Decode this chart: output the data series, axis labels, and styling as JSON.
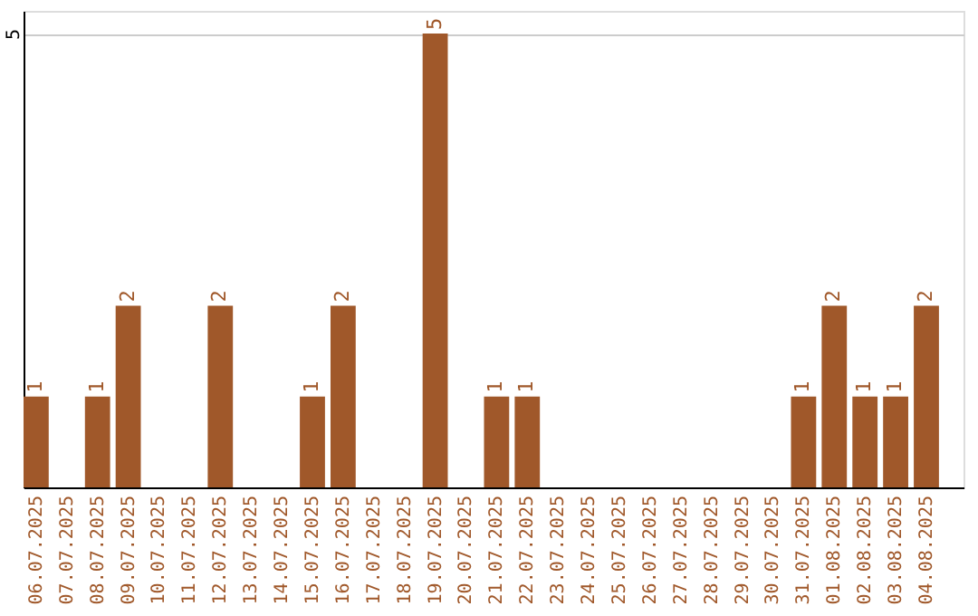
{
  "chart_data": {
    "type": "bar",
    "categories": [
      "06.07.2025",
      "07.07.2025",
      "08.07.2025",
      "09.07.2025",
      "10.07.2025",
      "11.07.2025",
      "12.07.2025",
      "13.07.2025",
      "14.07.2025",
      "15.07.2025",
      "16.07.2025",
      "17.07.2025",
      "18.07.2025",
      "19.07.2025",
      "20.07.2025",
      "21.07.2025",
      "22.07.2025",
      "23.07.2025",
      "24.07.2025",
      "25.07.2025",
      "26.07.2025",
      "27.07.2025",
      "28.07.2025",
      "29.07.2025",
      "30.07.2025",
      "31.07.2025",
      "01.08.2025",
      "02.08.2025",
      "03.08.2025",
      "04.08.2025"
    ],
    "values": [
      1,
      0,
      1,
      2,
      0,
      0,
      2,
      0,
      0,
      1,
      2,
      0,
      0,
      5,
      0,
      1,
      1,
      0,
      0,
      0,
      0,
      0,
      0,
      0,
      0,
      1,
      2,
      1,
      1,
      2
    ],
    "value_labels": [
      "1",
      null,
      "1",
      "2",
      null,
      null,
      "2",
      null,
      null,
      "1",
      "2",
      null,
      null,
      "5",
      null,
      "1",
      "1",
      null,
      null,
      null,
      null,
      null,
      null,
      null,
      null,
      "1",
      "2",
      "1",
      "1",
      "2"
    ],
    "color": "#a0582a",
    "ylim": [
      0,
      5.25
    ],
    "yticks": [
      5
    ],
    "grid": "y"
  }
}
